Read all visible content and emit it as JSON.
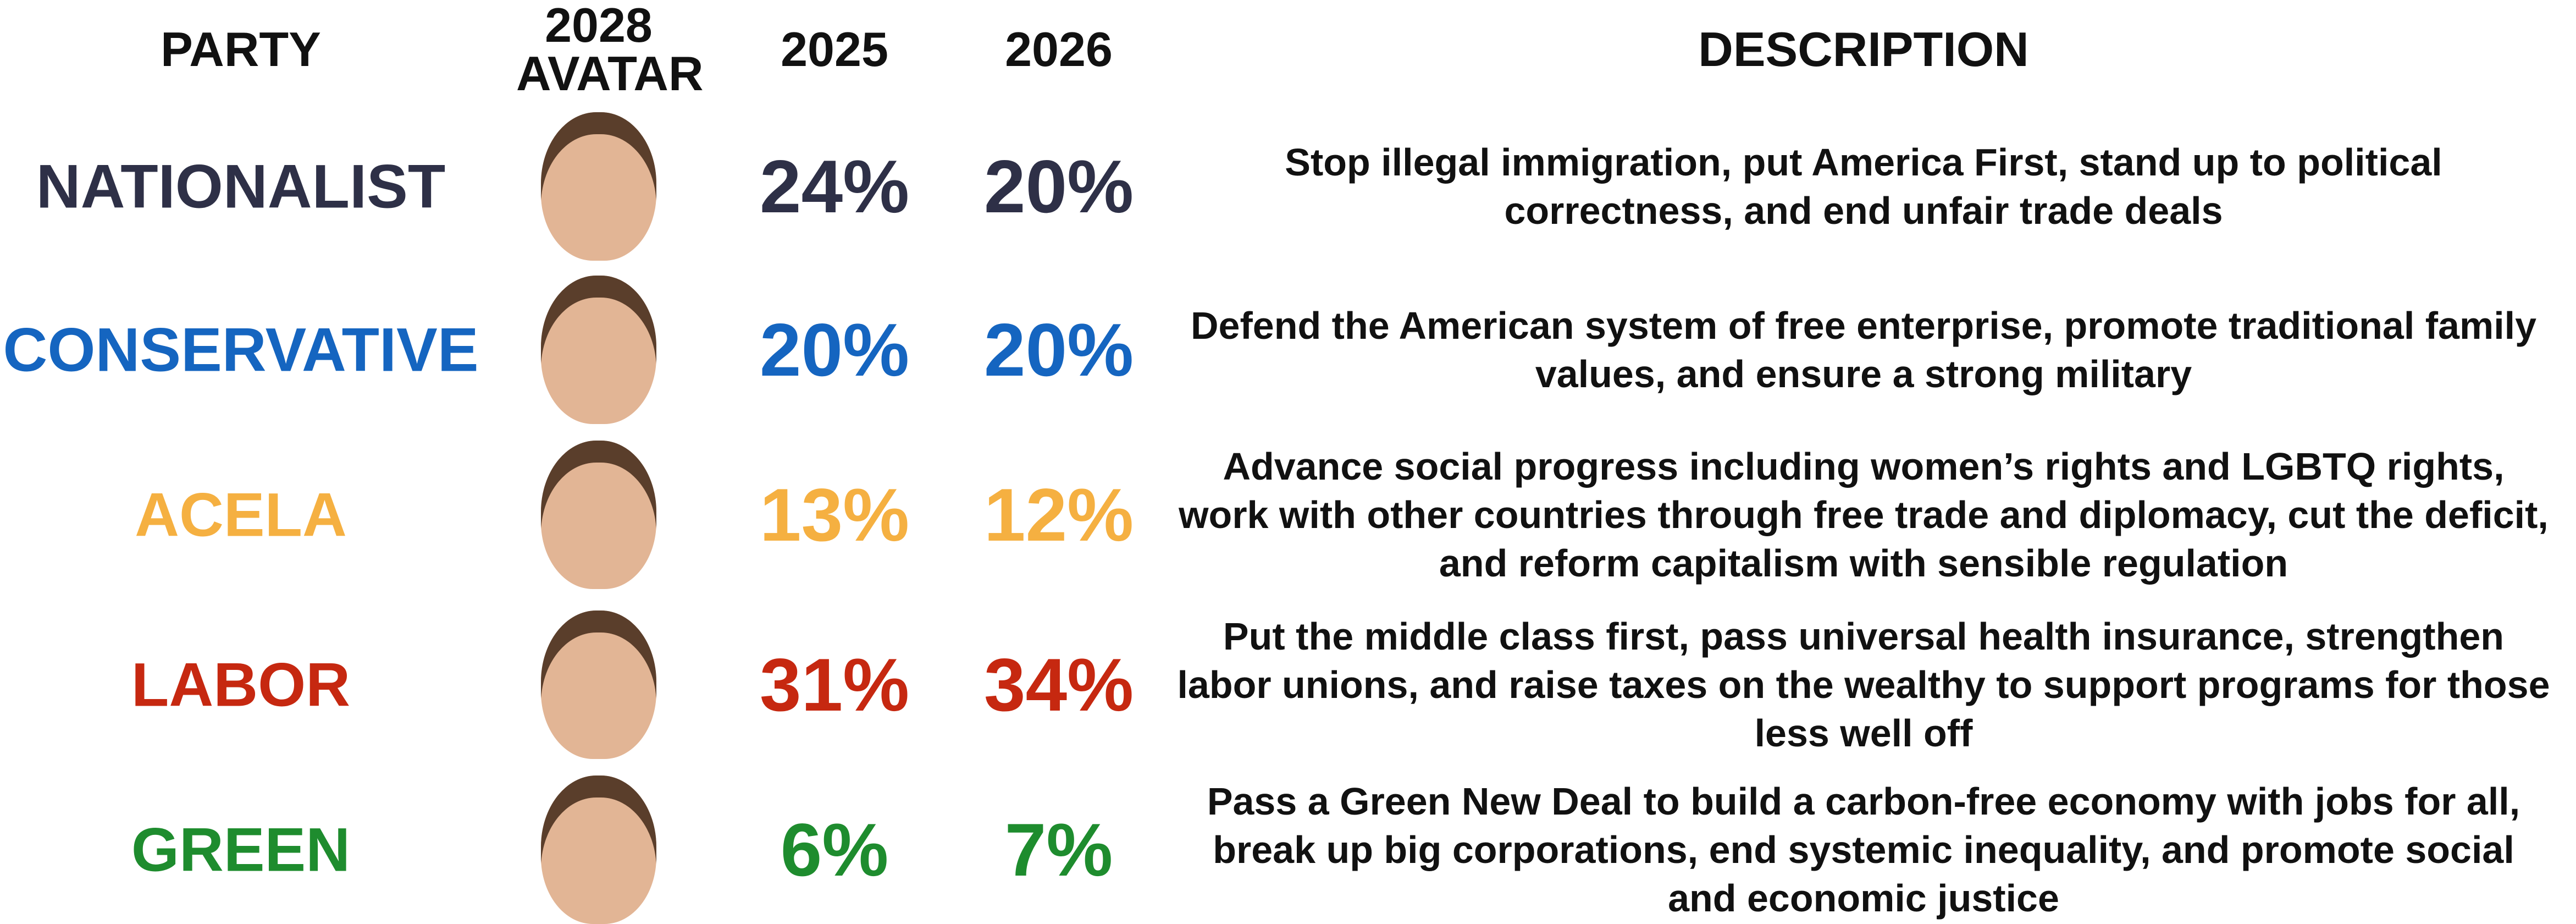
{
  "header": {
    "party": "PARTY",
    "avatar": "2028 AVATAR",
    "year1": "2025",
    "year2": "2026",
    "description": "DESCRIPTION"
  },
  "rows": [
    {
      "party": "NATIONALIST",
      "color": "#2e3047",
      "y2025": "24%",
      "y2026": "20%",
      "description": "Stop illegal immigration, put America First, stand up to political correctness, and end unfair trade deals"
    },
    {
      "party": "CONSERVATIVE",
      "color": "#1565c0",
      "y2025": "20%",
      "y2026": "20%",
      "description": "Defend the American system of free enterprise, promote traditional family values, and ensure a strong military"
    },
    {
      "party": "ACELA",
      "color": "#f5b041",
      "y2025": "13%",
      "y2026": "12%",
      "description": "Advance social progress including women’s rights and LGBTQ rights, work with other countries through free trade and diplomacy, cut the deficit, and reform capitalism with sensible regulation"
    },
    {
      "party": "LABOR",
      "color": "#c62810",
      "y2025": "31%",
      "y2026": "34%",
      "description": "Put the middle class first, pass universal health insurance, strengthen labor unions, and raise taxes on the wealthy to support programs for those less well off"
    },
    {
      "party": "GREEN",
      "color": "#1e8c2e",
      "y2025": "6%",
      "y2026": "7%",
      "description": "Pass a Green New Deal to build a carbon-free economy with jobs for all, break up big corporations, end systemic inequality, and promote social and economic justice"
    }
  ]
}
